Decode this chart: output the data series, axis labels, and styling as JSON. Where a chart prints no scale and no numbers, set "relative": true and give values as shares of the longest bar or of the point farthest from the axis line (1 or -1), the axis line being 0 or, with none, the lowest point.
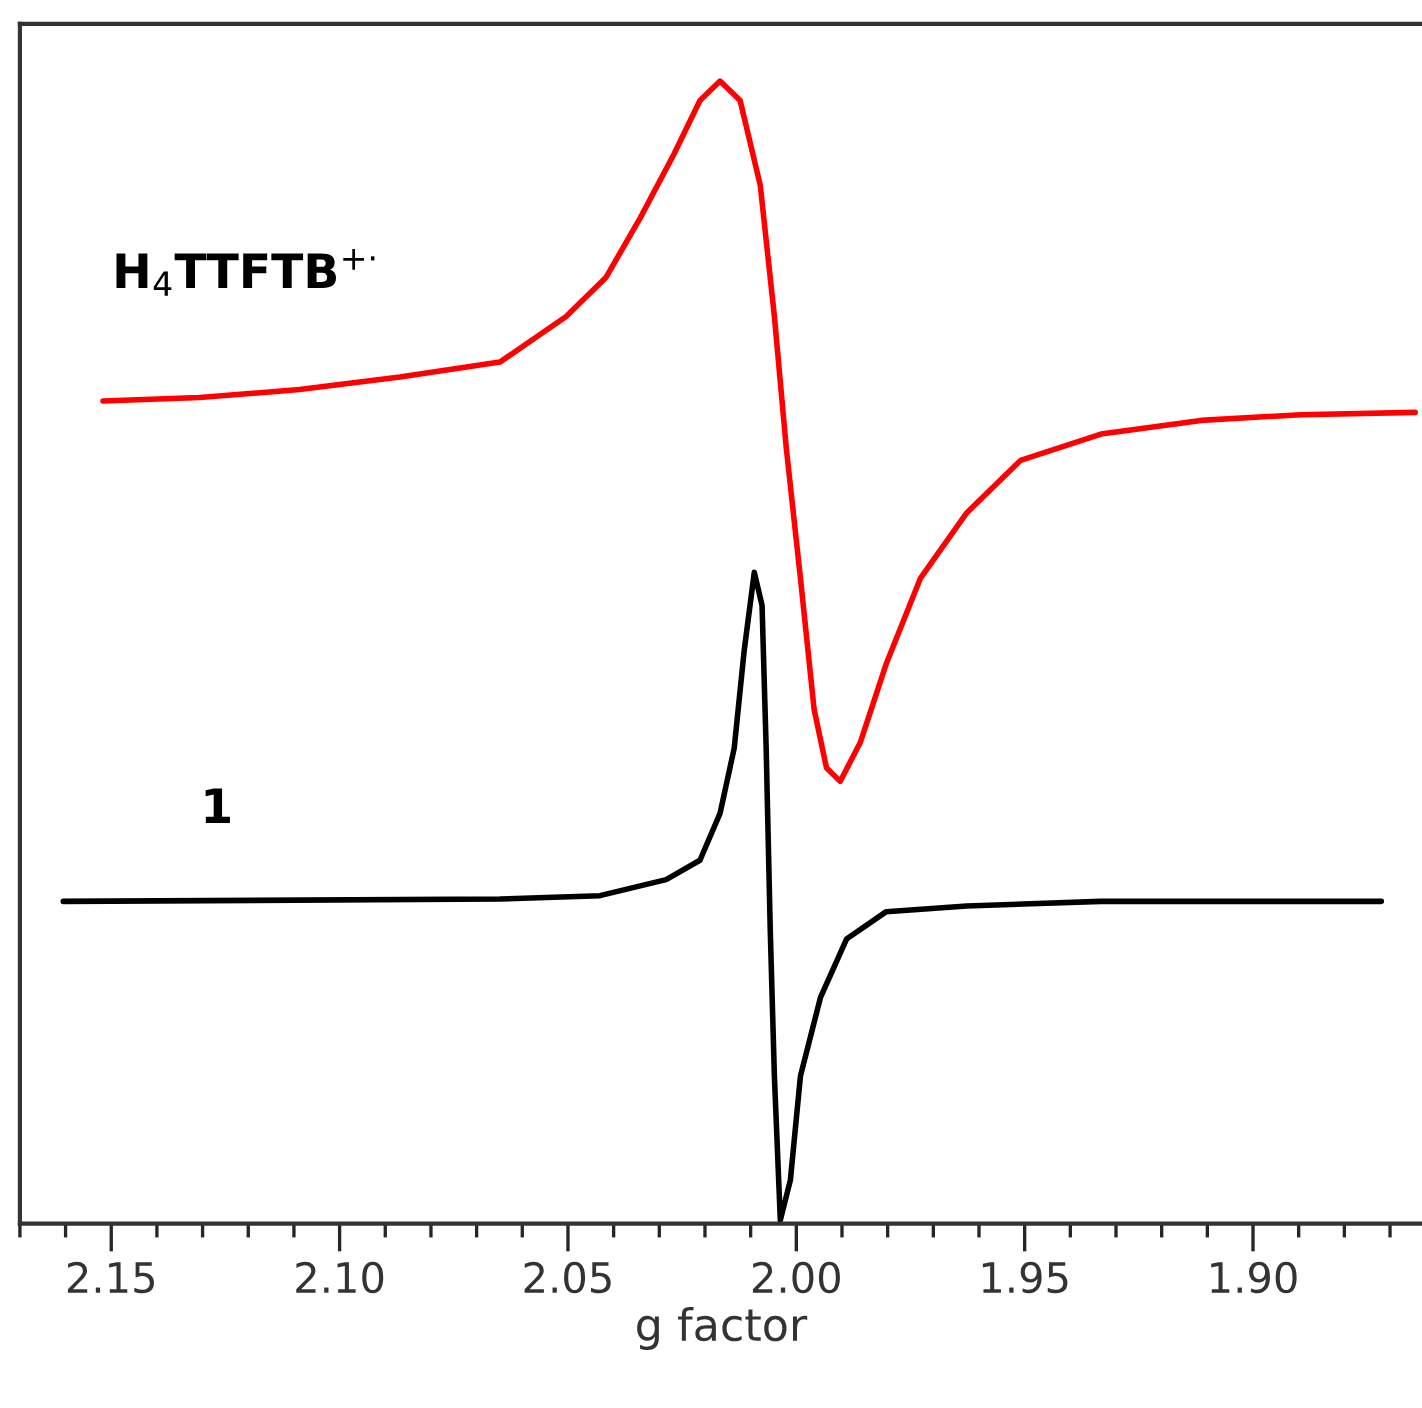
{
  "chart_data": {
    "type": "line",
    "xlabel": "g factor",
    "relative": true,
    "xlim": [
      2.17,
      1.863
    ],
    "xticks": [
      {
        "value": 2.17,
        "label": null
      },
      {
        "value": 2.16,
        "label": null
      },
      {
        "value": 2.15,
        "label": "2.15"
      },
      {
        "value": 2.14,
        "label": null
      },
      {
        "value": 2.13,
        "label": null
      },
      {
        "value": 2.12,
        "label": null
      },
      {
        "value": 2.11,
        "label": null
      },
      {
        "value": 2.1,
        "label": "2.10"
      },
      {
        "value": 2.09,
        "label": null
      },
      {
        "value": 2.08,
        "label": null
      },
      {
        "value": 2.07,
        "label": null
      },
      {
        "value": 2.06,
        "label": null
      },
      {
        "value": 2.05,
        "label": "2.05"
      },
      {
        "value": 2.04,
        "label": null
      },
      {
        "value": 2.03,
        "label": null
      },
      {
        "value": 2.02,
        "label": null
      },
      {
        "value": 2.01,
        "label": null
      },
      {
        "value": 2.0,
        "label": "2.00"
      },
      {
        "value": 1.99,
        "label": null
      },
      {
        "value": 1.98,
        "label": null
      },
      {
        "value": 1.97,
        "label": null
      },
      {
        "value": 1.96,
        "label": null
      },
      {
        "value": 1.95,
        "label": "1.95"
      },
      {
        "value": 1.94,
        "label": null
      },
      {
        "value": 1.93,
        "label": null
      },
      {
        "value": 1.92,
        "label": null
      },
      {
        "value": 1.91,
        "label": null
      },
      {
        "value": 1.9,
        "label": "1.90"
      },
      {
        "value": 1.89,
        "label": null
      },
      {
        "value": 1.88,
        "label": null
      },
      {
        "value": 1.87,
        "label": null
      }
    ],
    "grid": false,
    "legend": false,
    "marker": "none",
    "line_style": "solid",
    "series": [
      {
        "name": "H$_{4}$TTFTB$^{+·}$",
        "color": "#ff0000",
        "x": [
          2.1518,
          2.1307,
          2.1088,
          2.0868,
          2.0649,
          2.0504,
          2.0417,
          2.0342,
          2.0268,
          2.0211,
          2.0167,
          2.0123,
          2.0079,
          2.0048,
          2.0022,
          1.9991,
          1.9961,
          1.9934,
          1.9904,
          1.986,
          1.9803,
          1.9728,
          1.9627,
          1.9509,
          1.9333,
          1.9114,
          1.8895,
          1.8645
        ],
        "values": [
          0.72,
          0.723,
          0.73,
          0.741,
          0.754,
          0.794,
          0.828,
          0.88,
          0.936,
          0.983,
          1.0,
          0.983,
          0.909,
          0.794,
          0.679,
          0.565,
          0.45,
          0.399,
          0.387,
          0.421,
          0.49,
          0.565,
          0.622,
          0.668,
          0.691,
          0.703,
          0.708,
          0.71
        ]
      },
      {
        "name": "1",
        "color": "#000000",
        "x": [
          2.1605,
          2.0649,
          2.043,
          2.0285,
          2.0211,
          2.0167,
          2.0136,
          2.0114,
          2.0092,
          2.0075,
          2.0066,
          2.0057,
          2.0048,
          2.0035,
          2.0013,
          1.9991,
          1.9947,
          1.989,
          1.9803,
          1.9627,
          1.9333,
          1.8719
        ],
        "values": [
          0.282,
          0.284,
          0.287,
          0.301,
          0.318,
          0.359,
          0.416,
          0.502,
          0.57,
          0.541,
          0.416,
          0.256,
          0.129,
          0.003,
          0.038,
          0.129,
          0.198,
          0.249,
          0.273,
          0.278,
          0.282,
          0.282
        ]
      }
    ]
  }
}
